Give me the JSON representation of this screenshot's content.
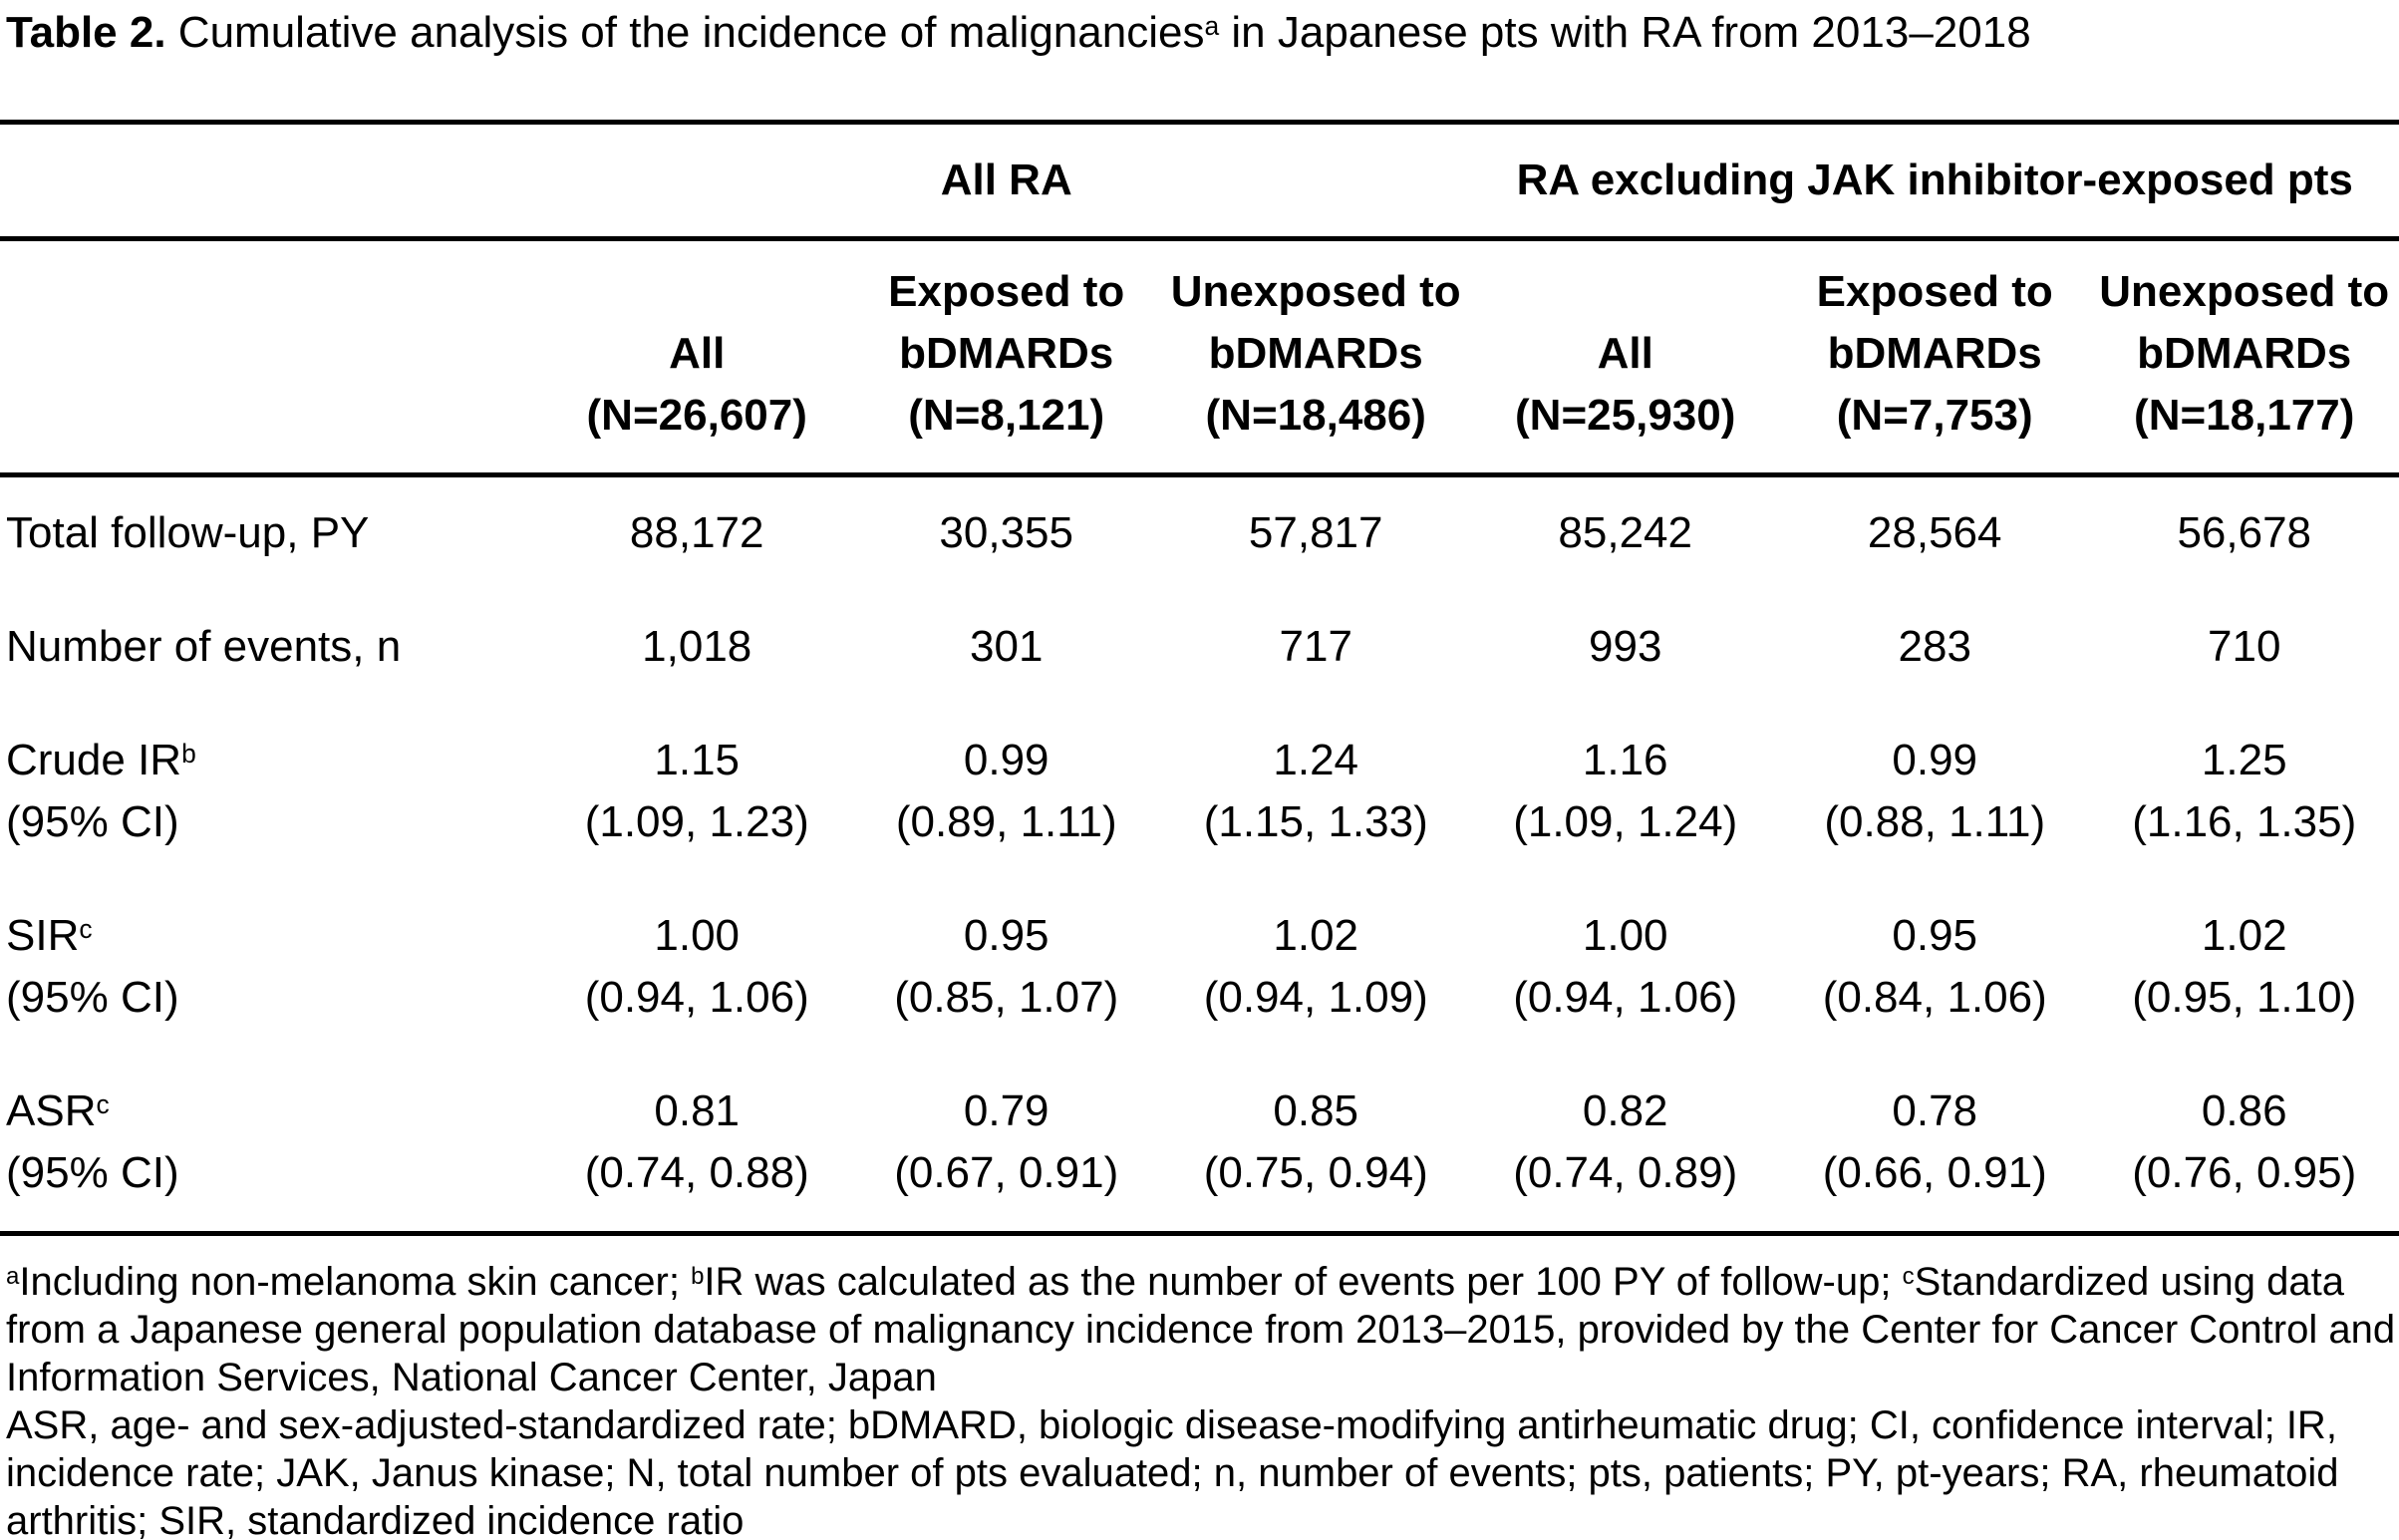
{
  "title": {
    "label": "Table 2.",
    "text_before_sup": " Cumulative analysis of the incidence of malignancies",
    "sup": "a",
    "text_after_sup": " in Japanese pts with RA from 2013–2018"
  },
  "table": {
    "groups": [
      {
        "label": "All RA"
      },
      {
        "label": "RA excluding JAK inhibitor-exposed pts"
      }
    ],
    "columns": [
      {
        "lines": [
          "All",
          "(N=26,607)"
        ]
      },
      {
        "lines": [
          "Exposed to",
          "bDMARDs",
          "(N=8,121)"
        ]
      },
      {
        "lines": [
          "Unexposed to",
          "bDMARDs",
          "(N=18,486)"
        ]
      },
      {
        "lines": [
          "All",
          "(N=25,930)"
        ]
      },
      {
        "lines": [
          "Exposed to",
          "bDMARDs",
          "(N=7,753)"
        ]
      },
      {
        "lines": [
          "Unexposed to",
          "bDMARDs",
          "(N=18,177)"
        ]
      }
    ],
    "rows": [
      {
        "label": "Total follow-up, PY",
        "values": [
          "88,172",
          "30,355",
          "57,817",
          "85,242",
          "28,564",
          "56,678"
        ]
      },
      {
        "label": "Number of events, n",
        "values": [
          "1,018",
          "301",
          "717",
          "993",
          "283",
          "710"
        ]
      },
      {
        "label": "Crude IR",
        "sup": "b",
        "sublabel": "(95% CI)",
        "values": [
          "1.15",
          "0.99",
          "1.24",
          "1.16",
          "0.99",
          "1.25"
        ],
        "ci": [
          "(1.09, 1.23)",
          "(0.89, 1.11)",
          "(1.15, 1.33)",
          "(1.09, 1.24)",
          "(0.88, 1.11)",
          "(1.16, 1.35)"
        ]
      },
      {
        "label": "SIR",
        "sup": "c",
        "sublabel": "(95% CI)",
        "values": [
          "1.00",
          "0.95",
          "1.02",
          "1.00",
          "0.95",
          "1.02"
        ],
        "ci": [
          "(0.94, 1.06)",
          "(0.85, 1.07)",
          "(0.94, 1.09)",
          "(0.94, 1.06)",
          "(0.84, 1.06)",
          "(0.95, 1.10)"
        ]
      },
      {
        "label": "ASR",
        "sup": "c",
        "sublabel": "(95% CI)",
        "values": [
          "0.81",
          "0.79",
          "0.85",
          "0.82",
          "0.78",
          "0.86"
        ],
        "ci": [
          "(0.74, 0.88)",
          "(0.67, 0.91)",
          "(0.75, 0.94)",
          "(0.74, 0.89)",
          "(0.66, 0.91)",
          "(0.76, 0.95)"
        ]
      }
    ]
  },
  "footnotes": {
    "sup_a": "a",
    "part_a": "Including non-melanoma skin cancer; ",
    "sup_b": "b",
    "part_b": "IR was calculated as the number of events per 100 PY of follow-up; ",
    "sup_c": "c",
    "part_c": "Standardized using data from a Japanese general population database of malignancy incidence from 2013–2015, provided by the Center for Cancer Control and Information Services, National Cancer Center, Japan",
    "abbreviations": "ASR, age- and sex-adjusted-standardized rate; bDMARD, biologic disease-modifying antirheumatic drug; CI, confidence interval; IR, incidence rate; JAK, Janus kinase; N, total number of pts evaluated; n, number of events; pts, patients; PY, pt-years; RA, rheumatoid arthritis; SIR, standardized incidence ratio"
  }
}
